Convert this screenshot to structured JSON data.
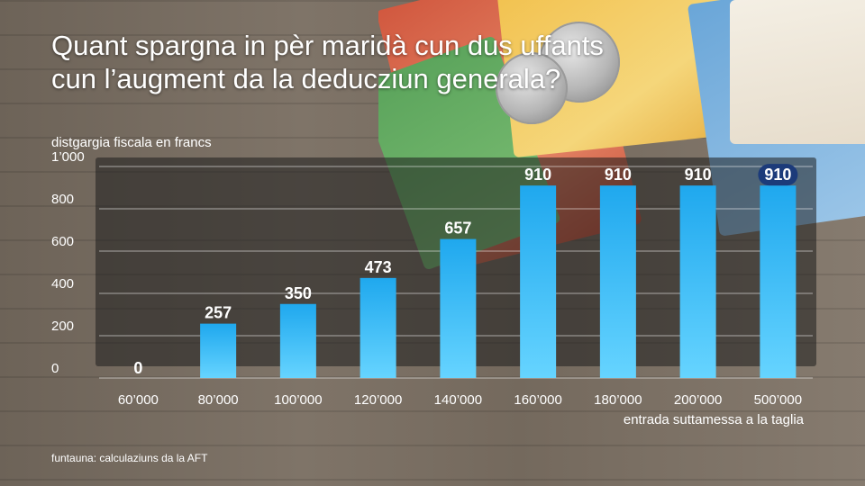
{
  "title_line1": "Quant spargna in pèr maridà cun dus uffants",
  "title_line2": "cun l’augment da la deducziun generala?",
  "source": "funtauna: calculaziuns da la AFT",
  "colors": {
    "bar_top": "#1fa8ee",
    "bar_bottom": "#66d4ff",
    "highlight": "#1c3b7a"
  },
  "chart_data": {
    "type": "bar",
    "categories": [
      "60’000",
      "80’000",
      "100’000",
      "120’000",
      "140’000",
      "160’000",
      "180’000",
      "200’000",
      "500’000"
    ],
    "values": [
      0,
      257,
      350,
      473,
      657,
      910,
      910,
      910,
      910
    ],
    "value_labels": [
      "0",
      "257",
      "350",
      "473",
      "657",
      "910",
      "910",
      "910",
      "910"
    ],
    "ylabel": "distgargia fiscala en francs",
    "xlabel": "entrada suttamessa a la taglia",
    "ylim": [
      0,
      1000
    ],
    "yticks": [
      0,
      200,
      400,
      600,
      800,
      1000
    ],
    "ytick_labels": [
      "0",
      "200",
      "400",
      "600",
      "800",
      "1’000"
    ],
    "grid": true
  }
}
